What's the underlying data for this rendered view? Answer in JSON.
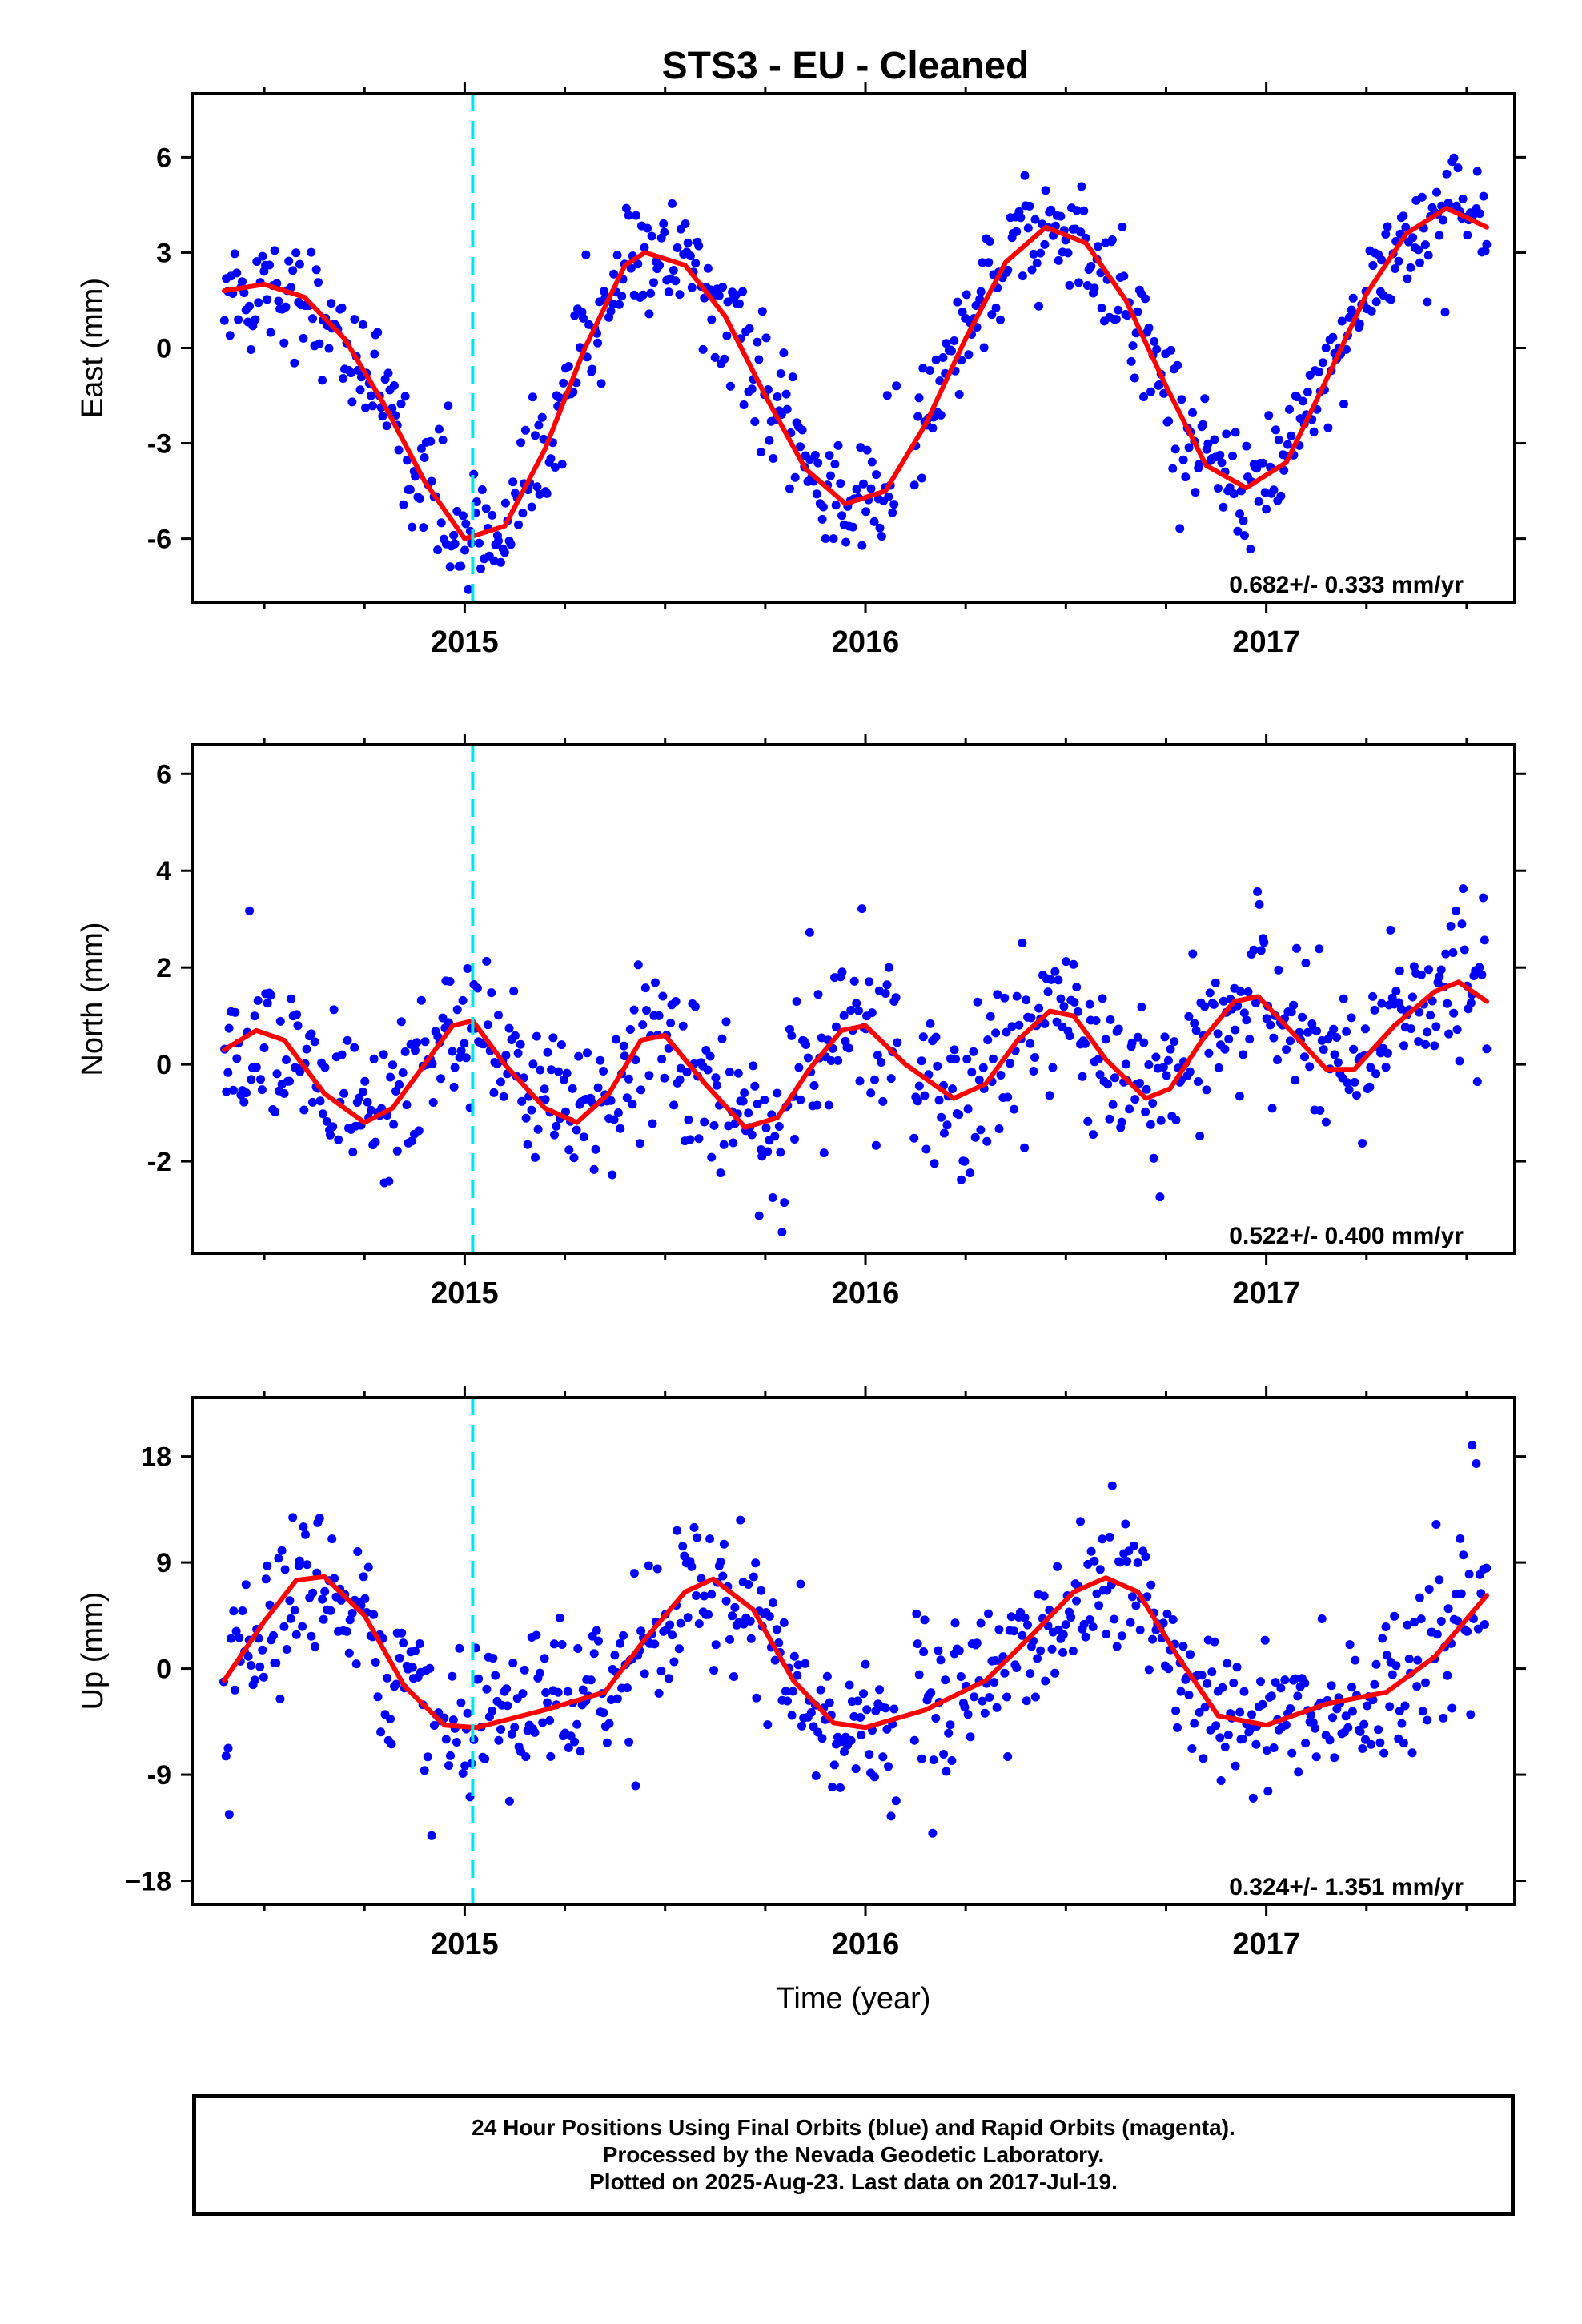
{
  "title": "STS3  - EU - Cleaned",
  "footer": {
    "lines": [
      "24 Hour Positions Using Final Orbits (blue) and Rapid Orbits (magenta).",
      "Processed by the Nevada Geodetic Laboratory.",
      "Plotted on 2025-Aug-23. Last data on 2017-Jul-19."
    ]
  },
  "colors": {
    "points": "#0000ff",
    "fit": "#ff0000",
    "event": "#00e5e5",
    "frame": "#000000"
  },
  "chart_data": [
    {
      "type": "scatter",
      "ylabel": "East (mm)",
      "xlabel": "",
      "rate_label": "0.682+/- 0.333 mm/yr",
      "xlim": [
        2014.32,
        2017.62
      ],
      "ylim": [
        -8,
        8
      ],
      "yticks": [
        -6,
        -3,
        0,
        3,
        6
      ],
      "xticks": [
        2015,
        2016,
        2017
      ],
      "event_line": 2015.02,
      "fit": [
        [
          2014.4,
          1.8
        ],
        [
          2014.5,
          2.0
        ],
        [
          2014.6,
          1.6
        ],
        [
          2014.7,
          0.3
        ],
        [
          2014.8,
          -1.8
        ],
        [
          2014.9,
          -4.2
        ],
        [
          2015.0,
          -6.0
        ],
        [
          2015.1,
          -5.6
        ],
        [
          2015.2,
          -3.2
        ],
        [
          2015.3,
          0.0
        ],
        [
          2015.4,
          2.6
        ],
        [
          2015.45,
          3.0
        ],
        [
          2015.55,
          2.6
        ],
        [
          2015.65,
          1.0
        ],
        [
          2015.75,
          -1.5
        ],
        [
          2015.85,
          -3.8
        ],
        [
          2015.95,
          -4.9
        ],
        [
          2016.05,
          -4.5
        ],
        [
          2016.15,
          -2.4
        ],
        [
          2016.25,
          0.3
        ],
        [
          2016.35,
          2.7
        ],
        [
          2016.45,
          3.8
        ],
        [
          2016.55,
          3.3
        ],
        [
          2016.65,
          1.5
        ],
        [
          2016.75,
          -1.2
        ],
        [
          2016.85,
          -3.7
        ],
        [
          2016.95,
          -4.4
        ],
        [
          2017.05,
          -3.6
        ],
        [
          2017.15,
          -1.0
        ],
        [
          2017.25,
          1.7
        ],
        [
          2017.35,
          3.6
        ],
        [
          2017.45,
          4.4
        ],
        [
          2017.55,
          3.8
        ]
      ],
      "scatter_sd": 0.9
    },
    {
      "type": "scatter",
      "ylabel": "North (mm)",
      "xlabel": "",
      "rate_label": "0.522+/- 0.400 mm/yr",
      "xlim": [
        2014.32,
        2017.62
      ],
      "ylim": [
        -3.9,
        6.6
      ],
      "yticks": [
        -2,
        0,
        2,
        4,
        6
      ],
      "xticks": [
        2015,
        2016,
        2017
      ],
      "event_line": 2015.02,
      "fit": [
        [
          2014.4,
          0.3
        ],
        [
          2014.48,
          0.7
        ],
        [
          2014.55,
          0.5
        ],
        [
          2014.65,
          -0.6
        ],
        [
          2014.75,
          -1.2
        ],
        [
          2014.82,
          -0.9
        ],
        [
          2014.9,
          0.0
        ],
        [
          2014.97,
          0.8
        ],
        [
          2015.02,
          0.9
        ],
        [
          2015.1,
          0.0
        ],
        [
          2015.2,
          -0.9
        ],
        [
          2015.28,
          -1.2
        ],
        [
          2015.36,
          -0.6
        ],
        [
          2015.44,
          0.5
        ],
        [
          2015.5,
          0.6
        ],
        [
          2015.6,
          -0.4
        ],
        [
          2015.7,
          -1.3
        ],
        [
          2015.78,
          -1.1
        ],
        [
          2015.86,
          -0.1
        ],
        [
          2015.94,
          0.7
        ],
        [
          2016.0,
          0.8
        ],
        [
          2016.1,
          0.0
        ],
        [
          2016.22,
          -0.7
        ],
        [
          2016.3,
          -0.4
        ],
        [
          2016.38,
          0.5
        ],
        [
          2016.46,
          1.1
        ],
        [
          2016.52,
          1.0
        ],
        [
          2016.6,
          0.1
        ],
        [
          2016.7,
          -0.7
        ],
        [
          2016.76,
          -0.5
        ],
        [
          2016.84,
          0.5
        ],
        [
          2016.92,
          1.3
        ],
        [
          2016.98,
          1.4
        ],
        [
          2017.06,
          0.7
        ],
        [
          2017.15,
          -0.1
        ],
        [
          2017.22,
          -0.1
        ],
        [
          2017.32,
          0.8
        ],
        [
          2017.42,
          1.5
        ],
        [
          2017.48,
          1.7
        ],
        [
          2017.55,
          1.3
        ]
      ],
      "scatter_sd": 0.8
    },
    {
      "type": "scatter",
      "ylabel": "Up (mm)",
      "xlabel": "Time (year)",
      "rate_label": "0.324+/- 1.351 mm/yr",
      "xlim": [
        2014.32,
        2017.62
      ],
      "ylim": [
        -20,
        23
      ],
      "yticks": [
        -18,
        -9,
        0,
        9,
        18
      ],
      "ytick_labels": [
        "−18",
        "-9",
        "0",
        "9",
        "18"
      ],
      "xticks": [
        2015,
        2016,
        2017
      ],
      "event_line": 2015.02,
      "fit": [
        [
          2014.4,
          -1.0
        ],
        [
          2014.5,
          4.0
        ],
        [
          2014.58,
          7.5
        ],
        [
          2014.65,
          7.8
        ],
        [
          2014.75,
          4.5
        ],
        [
          2014.85,
          -1.5
        ],
        [
          2014.95,
          -4.8
        ],
        [
          2015.03,
          -5.0
        ],
        [
          2015.2,
          -3.5
        ],
        [
          2015.35,
          -2.0
        ],
        [
          2015.45,
          2.5
        ],
        [
          2015.55,
          6.5
        ],
        [
          2015.62,
          7.6
        ],
        [
          2015.72,
          5.0
        ],
        [
          2015.82,
          -1.0
        ],
        [
          2015.92,
          -4.6
        ],
        [
          2016.0,
          -5.0
        ],
        [
          2016.15,
          -3.5
        ],
        [
          2016.3,
          -1.0
        ],
        [
          2016.42,
          3.0
        ],
        [
          2016.52,
          6.5
        ],
        [
          2016.6,
          7.7
        ],
        [
          2016.68,
          6.5
        ],
        [
          2016.78,
          1.0
        ],
        [
          2016.88,
          -4.0
        ],
        [
          2017.0,
          -4.8
        ],
        [
          2017.15,
          -3.0
        ],
        [
          2017.3,
          -2.0
        ],
        [
          2017.42,
          1.0
        ],
        [
          2017.55,
          6.2
        ]
      ],
      "scatter_sd": 3.2
    }
  ]
}
